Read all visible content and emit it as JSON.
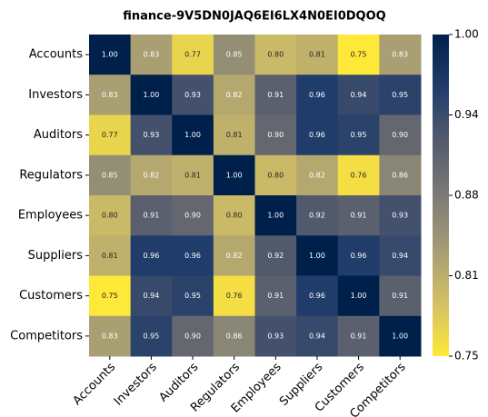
{
  "chart_data": {
    "type": "heatmap",
    "title": "finance-9V5DN0JAQ6EI6LX4N0EI0DQOQ",
    "categories": [
      "Accounts",
      "Investors",
      "Auditors",
      "Regulators",
      "Employees",
      "Suppliers",
      "Customers",
      "Competitors"
    ],
    "values": [
      [
        1.0,
        0.83,
        0.77,
        0.85,
        0.8,
        0.81,
        0.75,
        0.83
      ],
      [
        0.83,
        1.0,
        0.93,
        0.82,
        0.91,
        0.96,
        0.94,
        0.95
      ],
      [
        0.77,
        0.93,
        1.0,
        0.81,
        0.9,
        0.96,
        0.95,
        0.9
      ],
      [
        0.85,
        0.82,
        0.81,
        1.0,
        0.8,
        0.82,
        0.76,
        0.86
      ],
      [
        0.8,
        0.91,
        0.9,
        0.8,
        1.0,
        0.92,
        0.91,
        0.93
      ],
      [
        0.81,
        0.96,
        0.96,
        0.82,
        0.92,
        1.0,
        0.96,
        0.94
      ],
      [
        0.75,
        0.94,
        0.95,
        0.76,
        0.91,
        0.96,
        1.0,
        0.91
      ],
      [
        0.83,
        0.95,
        0.9,
        0.86,
        0.93,
        0.94,
        0.91,
        1.0
      ]
    ],
    "value_labels": [
      [
        "1.00",
        "0.83",
        "0.77",
        "0.85",
        "0.80",
        "0.81",
        "0.75",
        "0.83"
      ],
      [
        "0.83",
        "1.00",
        "0.93",
        "0.82",
        "0.91",
        "0.96",
        "0.94",
        "0.95"
      ],
      [
        "0.77",
        "0.93",
        "1.00",
        "0.81",
        "0.90",
        "0.96",
        "0.95",
        "0.90"
      ],
      [
        "0.85",
        "0.82",
        "0.81",
        "1.00",
        "0.80",
        "0.82",
        "0.76",
        "0.86"
      ],
      [
        "0.80",
        "0.91",
        "0.90",
        "0.80",
        "1.00",
        "0.92",
        "0.91",
        "0.93"
      ],
      [
        "0.81",
        "0.96",
        "0.96",
        "0.82",
        "0.92",
        "1.00",
        "0.96",
        "0.94"
      ],
      [
        "0.75",
        "0.94",
        "0.95",
        "0.76",
        "0.91",
        "0.96",
        "1.00",
        "0.91"
      ],
      [
        "0.83",
        "0.95",
        "0.90",
        "0.86",
        "0.93",
        "0.94",
        "0.91",
        "1.00"
      ]
    ],
    "colorscale": [
      "#fee838",
      "#d3c064",
      "#a59c74",
      "#7b7a77",
      "#555b6c",
      "#213d6b",
      "#00204c"
    ],
    "clim": [
      0.75,
      1
    ],
    "cticks": [
      {
        "value": 0.75,
        "label": "0.75"
      },
      {
        "value": 0.8125,
        "label": "0.81"
      },
      {
        "value": 0.875,
        "label": "0.88"
      },
      {
        "value": 0.9375,
        "label": "0.94"
      },
      {
        "value": 1,
        "label": "1.00"
      }
    ]
  }
}
